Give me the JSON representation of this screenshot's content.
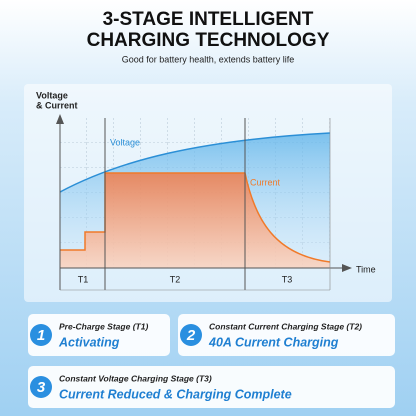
{
  "header": {
    "title_lines": [
      "3-STAGE INTELLIGENT",
      "CHARGING TECHNOLOGY"
    ],
    "subtitle": "Good for battery health, extends battery life"
  },
  "diagram": {
    "y_axis_label_lines": [
      "Voltage",
      "& Current"
    ],
    "x_axis_label": "Time",
    "curves": [
      "Voltage",
      "Current"
    ],
    "stages": [
      "T1",
      "T2",
      "T3"
    ]
  },
  "steps": [
    {
      "number": "1",
      "label": "Pre-Charge Stage (T1)",
      "status": "Activating"
    },
    {
      "number": "2",
      "label": "Constant Current Charging Stage (T2)",
      "status": "40A Current Charging"
    },
    {
      "number": "3",
      "label": "Constant Voltage Charging Stage (T3)",
      "status": "Current Reduced & Charging Complete"
    }
  ]
}
